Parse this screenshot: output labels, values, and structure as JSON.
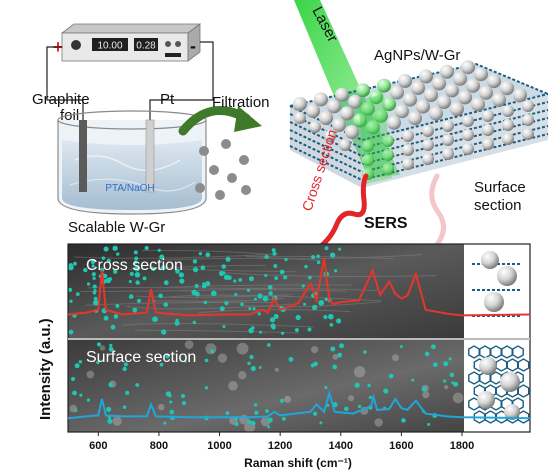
{
  "power_supply": {
    "plus": "+",
    "minus": "-",
    "voltage_readout": "10.00",
    "current_readout": "0.28"
  },
  "electrodes": {
    "graphite_line1": "Graphite",
    "graphite_line2": "foil",
    "pt": "Pt"
  },
  "beaker": {
    "solution": "PTA/NaOH",
    "caption": "Scalable W-Gr"
  },
  "process": {
    "filtration": "Filtration"
  },
  "structure": {
    "laser": "Laser",
    "composite": "AgNPs/W-Gr",
    "cross_section": "Cross section",
    "surface_section_line1": "Surface",
    "surface_section_line2": "section",
    "sers": "SERS"
  },
  "colors": {
    "cross_section": "#e8352b",
    "surface_section": "#22a5d8",
    "laser": "#3bd14a",
    "sers_arrow": "#e1252b",
    "arrow_green": "#3e7a2a",
    "nanoparticle": "#1fc7b2"
  },
  "chart_data": {
    "type": "line",
    "xlabel": "Raman shift (cm⁻¹)",
    "ylabel": "Intensity (a.u.)",
    "xlim": [
      500,
      1800
    ],
    "x_ticks": [
      "600",
      "800",
      "1000",
      "1200",
      "1400",
      "1600",
      "1800"
    ],
    "panels": [
      {
        "name": "Cross section",
        "color": "#e8352b",
        "baseline": 0.25,
        "x": [
          500,
          560,
          600,
          612,
          625,
          680,
          760,
          774,
          790,
          900,
          1000,
          1100,
          1140,
          1160,
          1180,
          1200,
          1260,
          1300,
          1320,
          1345,
          1362,
          1375,
          1395,
          1460,
          1505,
          1530,
          1560,
          1580,
          1600,
          1620,
          1648,
          1680,
          1750,
          1800
        ],
        "y": [
          0.25,
          0.27,
          0.3,
          0.72,
          0.3,
          0.25,
          0.27,
          0.52,
          0.27,
          0.24,
          0.25,
          0.25,
          0.3,
          0.27,
          0.42,
          0.3,
          0.37,
          0.58,
          0.4,
          0.85,
          0.4,
          0.36,
          0.38,
          0.4,
          0.72,
          0.46,
          0.6,
          0.47,
          0.42,
          0.45,
          0.68,
          0.3,
          0.26,
          0.24
        ]
      },
      {
        "name": "Surface section",
        "color": "#22a5d8",
        "baseline": 0.15,
        "x": [
          500,
          560,
          600,
          612,
          625,
          680,
          760,
          774,
          790,
          900,
          1000,
          1100,
          1160,
          1180,
          1200,
          1250,
          1300,
          1320,
          1345,
          1362,
          1380,
          1440,
          1500,
          1508,
          1520,
          1560,
          1580,
          1600,
          1620,
          1648,
          1680,
          1750,
          1800
        ],
        "y": [
          0.15,
          0.17,
          0.18,
          0.36,
          0.18,
          0.17,
          0.17,
          0.3,
          0.17,
          0.16,
          0.16,
          0.16,
          0.17,
          0.22,
          0.18,
          0.2,
          0.22,
          0.3,
          0.22,
          0.42,
          0.22,
          0.2,
          0.28,
          0.38,
          0.24,
          0.25,
          0.36,
          0.26,
          0.24,
          0.34,
          0.2,
          0.17,
          0.16
        ]
      }
    ]
  }
}
